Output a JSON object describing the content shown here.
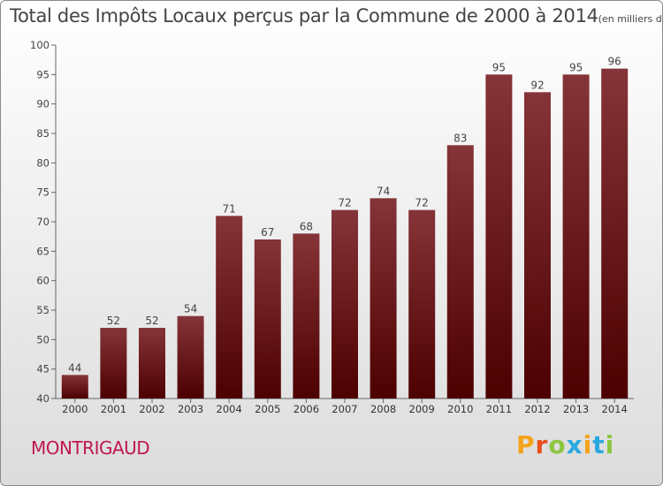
{
  "title": "Total des Impôts Locaux perçus par la Commune de 2000 à 2014",
  "title_unit": "(en milliers d'€)",
  "commune": "MONTRIGAUD",
  "logo_text": "Proxiti",
  "logo_colors": [
    "#f5a31a",
    "#e94e1b",
    "#8cc63f",
    "#2aa8df",
    "#f5a31a",
    "#2aa8df",
    "#8cc63f"
  ],
  "colors": {
    "bar_top": "#853438",
    "bar_bottom": "#4d0000",
    "commune": "#c0174d"
  },
  "chart_data": {
    "type": "bar",
    "title": "Total des Impôts Locaux perçus par la Commune de 2000 à 2014",
    "categories": [
      "2000",
      "2001",
      "2002",
      "2003",
      "2004",
      "2005",
      "2006",
      "2007",
      "2008",
      "2009",
      "2010",
      "2011",
      "2012",
      "2013",
      "2014"
    ],
    "values": [
      44,
      52,
      52,
      54,
      71,
      67,
      68,
      72,
      74,
      72,
      83,
      95,
      92,
      95,
      96
    ],
    "ylim": [
      40,
      100
    ],
    "yticks": [
      40,
      45,
      50,
      55,
      60,
      65,
      70,
      75,
      80,
      85,
      90,
      95,
      100
    ],
    "grid": false,
    "data_labels": true
  }
}
